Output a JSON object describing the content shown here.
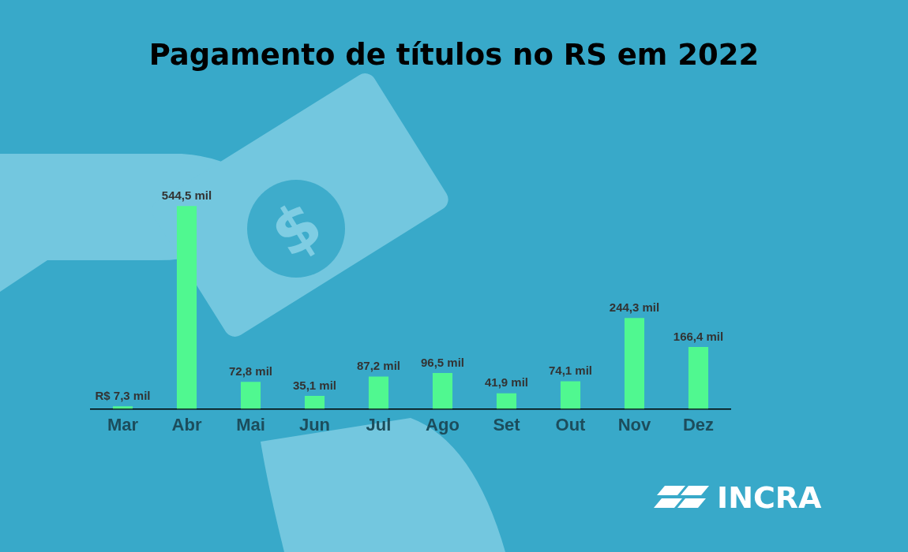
{
  "chart_data": {
    "type": "bar",
    "title": "Pagamento de títulos no RS em 2022",
    "categories": [
      "Mar",
      "Abr",
      "Mai",
      "Jun",
      "Jul",
      "Ago",
      "Set",
      "Out",
      "Nov",
      "Dez"
    ],
    "values": [
      7.3,
      544.5,
      72.8,
      35.1,
      87.2,
      96.5,
      41.9,
      74.1,
      244.3,
      166.4
    ],
    "value_labels": [
      "R$ 7,3 mil",
      "544,5 mil",
      "72,8 mil",
      "35,1 mil",
      "87,2 mil",
      "96,5 mil",
      "41,9 mil",
      "74,1 mil",
      "244,3 mil",
      "166,4 mil"
    ],
    "color": "#50f890",
    "ylim": [
      0,
      560
    ],
    "grid": false,
    "data_labels": true,
    "tick_labels": "x",
    "annotations": [
      "INCRA"
    ]
  }
}
